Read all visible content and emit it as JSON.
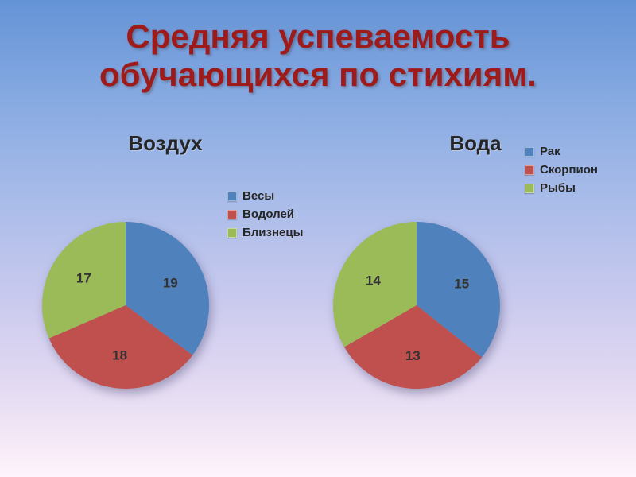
{
  "slide": {
    "title": "Средняя успеваемость обучающихся по стихиям.",
    "title_color": "#9e1b1b"
  },
  "chart_data": [
    {
      "type": "pie",
      "title": "Воздух",
      "labels": [
        "Весы",
        "Водолей",
        "Близнецы"
      ],
      "values": [
        19,
        18,
        17
      ],
      "colors": [
        "#4f81bd",
        "#c0504d",
        "#9bbb59"
      ],
      "legend_position": "right",
      "data_labels": true,
      "start_angle_deg": 0,
      "direction": "clockwise"
    },
    {
      "type": "pie",
      "title": "Вода",
      "labels": [
        "Рак",
        "Скорпион",
        "Рыбы"
      ],
      "values": [
        15,
        13,
        14
      ],
      "colors": [
        "#4f81bd",
        "#c0504d",
        "#9bbb59"
      ],
      "legend_position": "right",
      "data_labels": true,
      "start_angle_deg": 0,
      "direction": "clockwise"
    }
  ]
}
